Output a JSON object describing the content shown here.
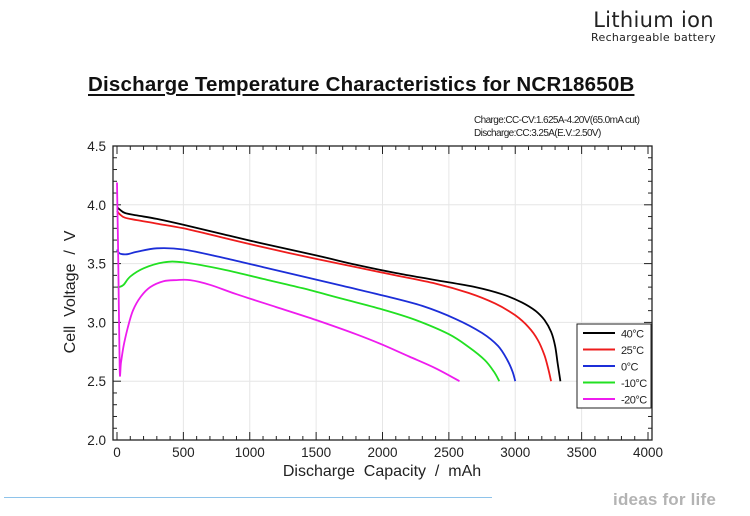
{
  "brand": {
    "line1": "Lithium ion",
    "line2": "Rechargeable  battery"
  },
  "footer": {
    "tagline": "ideas for life",
    "line_color": "#8ec3ea"
  },
  "chart_data": {
    "type": "line",
    "title": "Discharge Temperature Characteristics for NCR18650B",
    "conditions": [
      "Charge:CC-CV:1.625A-4.20V(65.0mA  cut)",
      "Discharge:CC:3.25A(E.V.:2.50V)"
    ],
    "xlabel": "Discharge  Capacity  /  mAh",
    "ylabel": "Cell  Voltage  /  V",
    "xlim": [
      0,
      4000
    ],
    "ylim": [
      2.0,
      4.5
    ],
    "xticks": [
      "0",
      "500",
      "1000",
      "1500",
      "2000",
      "2500",
      "3000",
      "3500",
      "4000"
    ],
    "xtick_values": [
      0,
      500,
      1000,
      1500,
      2000,
      2500,
      3000,
      3500,
      4000
    ],
    "yticks": [
      "2.0",
      "2.5",
      "3.0",
      "3.5",
      "4.0",
      "4.5"
    ],
    "ytick_values": [
      2.0,
      2.5,
      3.0,
      3.5,
      4.0,
      4.5
    ],
    "grid": true,
    "legend_position": "right",
    "series": [
      {
        "name": "40°C",
        "color": "#000000",
        "x": [
          0,
          20,
          60,
          150,
          300,
          500,
          800,
          1100,
          1500,
          1800,
          2100,
          2400,
          2700,
          2900,
          3050,
          3150,
          3220,
          3270,
          3300,
          3320,
          3340
        ],
        "y": [
          3.98,
          3.96,
          3.93,
          3.91,
          3.88,
          3.83,
          3.75,
          3.67,
          3.57,
          3.49,
          3.42,
          3.36,
          3.3,
          3.24,
          3.17,
          3.1,
          3.02,
          2.92,
          2.8,
          2.65,
          2.5
        ]
      },
      {
        "name": "25°C",
        "color": "#ee1c1c",
        "x": [
          0,
          20,
          60,
          150,
          300,
          500,
          800,
          1100,
          1500,
          1800,
          2100,
          2400,
          2650,
          2850,
          3000,
          3100,
          3170,
          3220,
          3250,
          3270
        ],
        "y": [
          3.95,
          3.92,
          3.89,
          3.87,
          3.84,
          3.8,
          3.72,
          3.64,
          3.54,
          3.47,
          3.4,
          3.33,
          3.25,
          3.16,
          3.06,
          2.96,
          2.85,
          2.72,
          2.6,
          2.5
        ]
      },
      {
        "name": "0°C",
        "color": "#1c2ed8",
        "x": [
          0,
          15,
          40,
          80,
          150,
          300,
          500,
          800,
          1100,
          1400,
          1700,
          2000,
          2300,
          2550,
          2750,
          2870,
          2940,
          2980,
          3000
        ],
        "y": [
          3.62,
          3.59,
          3.58,
          3.58,
          3.6,
          3.63,
          3.62,
          3.55,
          3.47,
          3.39,
          3.31,
          3.23,
          3.14,
          3.03,
          2.91,
          2.8,
          2.68,
          2.58,
          2.5
        ]
      },
      {
        "name": "-10°C",
        "color": "#22e022",
        "x": [
          0,
          15,
          50,
          100,
          200,
          350,
          500,
          800,
          1100,
          1400,
          1700,
          2000,
          2250,
          2500,
          2650,
          2770,
          2840,
          2880
        ],
        "y": [
          3.3,
          3.3,
          3.32,
          3.39,
          3.46,
          3.51,
          3.51,
          3.45,
          3.37,
          3.29,
          3.2,
          3.11,
          3.02,
          2.9,
          2.79,
          2.68,
          2.58,
          2.5
        ]
      },
      {
        "name": "-20°C",
        "color": "#ee1cee",
        "x": [
          0,
          10,
          20,
          30,
          50,
          80,
          120,
          180,
          250,
          350,
          450,
          550,
          700,
          900,
          1200,
          1500,
          1800,
          2000,
          2200,
          2400,
          2580
        ],
        "y": [
          4.19,
          3.5,
          2.6,
          2.66,
          2.8,
          2.95,
          3.1,
          3.22,
          3.3,
          3.35,
          3.36,
          3.36,
          3.32,
          3.24,
          3.13,
          3.02,
          2.9,
          2.81,
          2.71,
          2.61,
          2.5
        ]
      }
    ]
  }
}
